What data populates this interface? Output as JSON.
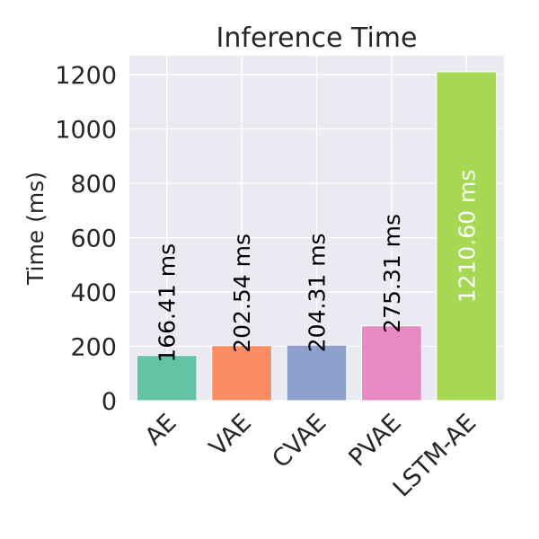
{
  "chart_data": {
    "type": "bar",
    "title": "Inference Time",
    "xlabel": "",
    "ylabel": "Time (ms)",
    "categories": [
      "AE",
      "VAE",
      "CVAE",
      "PVAE",
      "LSTM-AE"
    ],
    "values": [
      166.41,
      202.54,
      204.31,
      275.31,
      1210.6
    ],
    "data_labels": [
      "166.41 ms",
      "202.54 ms",
      "204.31 ms",
      "275.31 ms",
      "1210.60 ms"
    ],
    "bar_colors": [
      "#66c2a5",
      "#fc8d62",
      "#8da0cb",
      "#e78ac3",
      "#a6d854"
    ],
    "label_colors": [
      "#000000",
      "#000000",
      "#000000",
      "#000000",
      "#ffffff"
    ],
    "ylim": [
      0,
      1270
    ],
    "yticks": [
      "0",
      "200",
      "400",
      "600",
      "800",
      "1000",
      "1200"
    ],
    "grid": true,
    "background": "#eaeaf2",
    "grid_color": "#ffffff"
  }
}
